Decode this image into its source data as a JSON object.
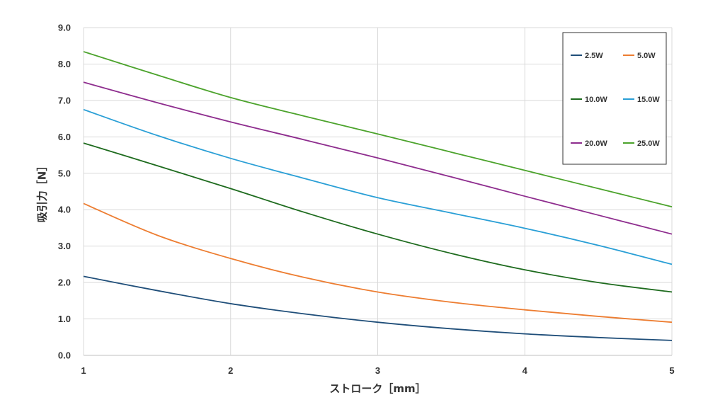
{
  "chart_data": {
    "type": "line",
    "xlabel": "ストローク［mm］",
    "ylabel": "吸引力［N］",
    "xlim": [
      1,
      5
    ],
    "ylim": [
      0,
      9
    ],
    "x_ticks": [
      "1",
      "2",
      "3",
      "4",
      "5"
    ],
    "y_ticks": [
      "0.0",
      "1.0",
      "2.0",
      "3.0",
      "4.0",
      "5.0",
      "6.0",
      "7.0",
      "8.0",
      "9.0"
    ],
    "grid": true,
    "legend_position": "top-right",
    "x": [
      1,
      1.5,
      2,
      2.5,
      3,
      3.5,
      4,
      4.5,
      5
    ],
    "series": [
      {
        "name": "2.5W",
        "color": "#1f4e79",
        "values": [
          2.17,
          1.78,
          1.42,
          1.14,
          0.91,
          0.73,
          0.59,
          0.49,
          0.41
        ]
      },
      {
        "name": "5.0W",
        "color": "#ed7d31",
        "values": [
          4.17,
          3.3,
          2.66,
          2.14,
          1.74,
          1.46,
          1.25,
          1.07,
          0.91
        ]
      },
      {
        "name": "10.0W",
        "color": "#1e6b1e",
        "values": [
          5.83,
          5.21,
          4.58,
          3.93,
          3.33,
          2.8,
          2.35,
          2.0,
          1.74
        ]
      },
      {
        "name": "15.0W",
        "color": "#2a9fd6",
        "values": [
          6.75,
          6.04,
          5.41,
          4.86,
          4.33,
          3.91,
          3.49,
          3.02,
          2.5
        ]
      },
      {
        "name": "20.0W",
        "color": "#8e2d8e",
        "values": [
          7.5,
          6.94,
          6.41,
          5.92,
          5.42,
          4.9,
          4.37,
          3.85,
          3.33
        ]
      },
      {
        "name": "25.0W",
        "color": "#4ca32c",
        "values": [
          8.34,
          7.7,
          7.08,
          6.57,
          6.08,
          5.58,
          5.08,
          4.58,
          4.08
        ]
      }
    ]
  }
}
